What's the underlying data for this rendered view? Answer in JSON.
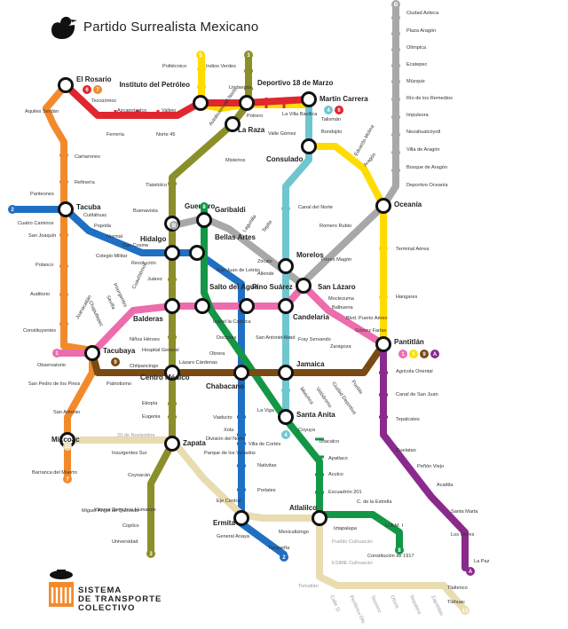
{
  "title": "Partido Surrealista Mexicano",
  "logo": {
    "line1": "SISTEMA",
    "line2": "DE TRANSPORTE",
    "line3": "COLECTIVO",
    "glyph": "metro-logo-icon"
  },
  "colors": {
    "l1": "#ec6cac",
    "l2": "#1f6fc2",
    "l3": "#8b8f2a",
    "l4": "#6fc6cf",
    "l5": "#ffdc00",
    "l6": "#e0262e",
    "l7": "#f28a2c",
    "l8": "#149647",
    "l9": "#7a4a12",
    "la": "#8a2a8c",
    "lb": "#a8a8a8",
    "l12": "#e8dcb0"
  },
  "line_badges": {
    "1": "1",
    "2": "2",
    "3": "3",
    "4": "4",
    "5": "5",
    "6": "6",
    "7": "7",
    "8": "8",
    "9": "9",
    "A": "A",
    "B": "B",
    "12": "12"
  },
  "transfer_stations": [
    "El Rosario",
    "Instituto del Petróleo",
    "Deportivo 18 de Marzo",
    "Martín Carrera",
    "La Raza",
    "Consulado",
    "Tacuba",
    "Oceanía",
    "Guerrero",
    "Garibaldi",
    "Hidalgo",
    "Bellas Artes",
    "Morelos",
    "San Lázaro",
    "Balderas",
    "Salto del Agua",
    "Pino Suárez",
    "Candelaria",
    "Tacubaya",
    "Pantitlán",
    "Centro Médico",
    "Chabacano",
    "Jamaica",
    "Santa Anita",
    "Mixcoac",
    "Zapata",
    "Ermita",
    "Atlalilco"
  ],
  "stations": {
    "ciudad_azteca": "Ciudad Azteca",
    "plaza_aragon": "Plaza Aragón",
    "olimpica": "Olímpica",
    "ecatepec": "Ecatepec",
    "muzquiz": "Múzquiz",
    "rio_remedios": "Río de los Remedios",
    "impulsora": "Impulsora",
    "nezahualcoyotl": "Nezahualcóyotl",
    "villa_aragon": "Villa de Aragón",
    "bosque_aragon": "Bosque de Aragón",
    "deportivo_oceania": "Deportivo Oceanía",
    "politecnico": "Politécnico",
    "indios_verdes": "Indios Verdes",
    "tezozomoc": "Tezozómoc",
    "azcapotzalco": "Azcapotzalco",
    "vallejo": "Vallejo",
    "lindavista": "Lindavista",
    "ferreria": "Ferrería",
    "norte45": "Norte 45",
    "autobuses_norte": "Autobuses del Norte",
    "potrero": "Potrero",
    "la_villa": "La Villa Basílica",
    "talisman": "Talismán",
    "bondojito": "Bondojito",
    "eduardo_molina": "Eduardo Molina",
    "aragon": "Aragón",
    "valle_gomez": "Valle Gómez",
    "misterios": "Misterios",
    "aquiles_serdan": "Aquiles Serdán",
    "camarones": "Camarones",
    "refineria": "Refinería",
    "tlatelolco": "Tlatelolco",
    "canal_norte": "Canal del Norte",
    "romero_rubio": "Romero Rubio",
    "panteones": "Panteones",
    "cuitlahuac": "Cuitláhuac",
    "cuatro_caminos": "Cuatro Caminos",
    "popotla": "Popotla",
    "san_joaquin": "San Joaquín",
    "buenavista": "Buenavista",
    "lagunilla": "Lagunilla",
    "tepito": "Tepito",
    "normal": "Normal",
    "san_cosme": "San Cosme",
    "colegio_militar": "Colegio Militar",
    "revolucion": "Revolución",
    "polanco": "Polanco",
    "terminal_aerea": "Terminal Aérea",
    "flores_magon": "Flores Magón",
    "zocalo": "Zócalo",
    "allende": "Allende",
    "san_juan_letran": "San Juan de Letrán",
    "juarez": "Juárez",
    "cuauhtemoc": "Cuauhtémoc",
    "insurgentes": "Insurgentes",
    "sevilla": "Sevilla",
    "chapultepec": "Chapultepec",
    "juanacatlan": "Juanacatlán",
    "auditorio": "Auditorio",
    "hangares": "Hangares",
    "moctezuma": "Moctezuma",
    "balbuena": "Balbuena",
    "blvd_puerto_aereo": "Blvd. Puerto Aéreo",
    "gomez_farias": "Gómez Farías",
    "zaragoza": "Zaragoza",
    "isabel_catolica": "Isabel la Católica",
    "san_antonio_abad": "San Antonio Abad",
    "fray_servando": "Fray Servando",
    "constituyentes": "Constituyentes",
    "ninos_heroes": "Niños Héroes",
    "hospital_general": "Hospital General",
    "doctores": "Doctores",
    "obrera": "Obrera",
    "observatorio": "Observatorio",
    "chilpancingo": "Chilpancingo",
    "lazaro_cardenas": "Lázaro Cárdenas",
    "agricola_oriental": "Agrícola Oriental",
    "san_pedro_pinos": "San Pedro de los Pinos",
    "patriotismo": "Patriotismo",
    "mixiuhca": "Mixiuhca",
    "velodromo": "Velódromo",
    "ciudad_deportiva": "Ciudad Deportiva",
    "puebla": "Puebla",
    "canal_san_juan": "Canal de San Juan",
    "etiopia": "Etiopía",
    "eugenia": "Eugenia",
    "la_viga": "La Viga",
    "san_antonio": "San Antonio",
    "tepalcates": "Tepalcates",
    "viaducto": "Viaducto",
    "xola": "Xola",
    "division_norte": "División del Norte",
    "nov20": "20 de Noviembre",
    "coyuya": "Coyuya",
    "iztacalco": "Iztacalco",
    "guelatao": "Guelatao",
    "insurgentes_sur": "Insurgentes Sur",
    "villa_cortes": "Villa de Cortés",
    "apatlaco": "Apatlaco",
    "barranca_muerto": "Barranca del Muerto",
    "parque_venados": "Parque de los Venados",
    "penon_viejo": "Peñón Viejo",
    "aculco": "Aculco",
    "acatitla": "Acatitla",
    "nativitas": "Nativitas",
    "coyoacan": "Coyoacán",
    "escuadron201": "Escuadrón 201",
    "viveros": "Viveros Derechos Humanos",
    "portales": "Portales",
    "eje_central": "Eje Central",
    "santa_marta": "Santa Marta",
    "miguel_quevedo": "Miguel Ángel de Quevedo",
    "c_estrella": "C. de la Estrella",
    "uam": "U.A.M. I",
    "iztapalapa": "Iztapalapa",
    "los_reyes": "Los Reyes",
    "copilco": "Copilco",
    "general_anaya": "General Anaya",
    "mexicaltzingo": "Mexicaltzingo",
    "constitucion": "Constitución de 1917",
    "universidad": "Universidad",
    "pueblo_culhuacan": "Pueblo Culhuacán",
    "taxquena": "Taxqueña",
    "esime": "ESIME Culhuacán",
    "la_paz": "La Paz",
    "tomatlan": "Tomatlán",
    "calle11": "Calle 11",
    "periferico": "Periférico Ote.",
    "tezonco": "Tezonco",
    "olivos": "Olivos",
    "nopalera": "Nopalera",
    "zapotitlan": "Zapotitlán",
    "tlaltenco": "Tlaltenco",
    "tlahuac": "Tláhuac"
  }
}
